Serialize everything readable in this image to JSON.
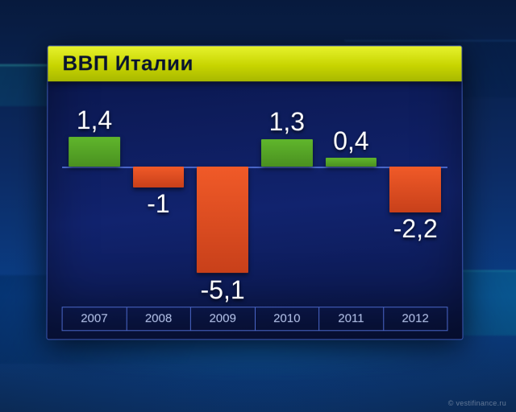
{
  "chart": {
    "type": "bar",
    "title": "ВВП Италии",
    "title_color": "#08132f",
    "title_fontsize": 26,
    "title_bar_gradient": [
      "#e6f22c",
      "#c7d400",
      "#a8b800"
    ],
    "panel_border": "#3a55b0",
    "background_colors": [
      "#071a3d",
      "#0c2a63",
      "#0a3e86"
    ],
    "baseline_color": "#4a66c8",
    "axis_border_color": "#4a66c8",
    "axis_text_color": "#b9c7ee",
    "axis_fontsize": 15,
    "positive_bar_color": "#60b62c",
    "positive_bar_shade": "#4a9020",
    "negative_bar_color": "#f05a28",
    "negative_bar_shade": "#c8401a",
    "value_label_color": "#ffffff",
    "value_label_fontsize": 32,
    "baseline_position_pct": 36,
    "y_scale_pct_per_unit": 10,
    "bar_width_pct": 80,
    "categories": [
      "2007",
      "2008",
      "2009",
      "2010",
      "2011",
      "2012"
    ],
    "values": [
      1.4,
      -1,
      -5.1,
      1.3,
      0.4,
      -2.2
    ],
    "display_values": [
      "1,4",
      "-1",
      "-5,1",
      "1,3",
      "0,4",
      "-2,2"
    ]
  },
  "watermark": "© vestifinance.ru"
}
